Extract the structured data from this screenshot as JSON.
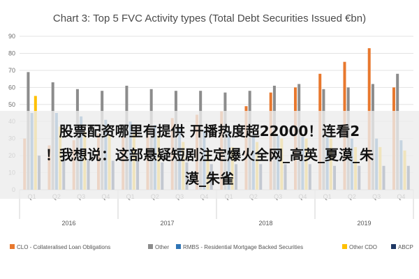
{
  "chart_data": {
    "type": "bar",
    "title": "Chart 3: Top 5 FVC Activity types (Total Debt Securities Issued €bn)",
    "xlabel": "",
    "ylabel": "",
    "ylim": [
      0,
      90
    ],
    "yticks": [
      "0",
      "10",
      "20",
      "30",
      "40",
      "50",
      "60",
      "70",
      "80",
      "90"
    ],
    "grid": true,
    "legend_position": "bottom",
    "categories": [
      "Q1",
      "Q2",
      "Q3",
      "Q4",
      "Q1",
      "Q2",
      "Q3",
      "Q4",
      "Q1",
      "Q2",
      "Q3",
      "Q4",
      "Q1",
      "Q2",
      "Q3",
      "Q4"
    ],
    "groups": [
      {
        "label": "2016",
        "count": 4
      },
      {
        "label": "2017",
        "count": 4
      },
      {
        "label": "2018",
        "count": 4
      },
      {
        "label": "2019",
        "count": 4
      }
    ],
    "series": [
      {
        "name": "CLO - Collateralised Loan Obligations",
        "color": "#e8782e",
        "values": [
          30,
          26,
          29,
          33,
          31,
          36,
          42,
          44,
          46,
          49,
          57,
          60,
          68,
          75,
          83,
          60
        ]
      },
      {
        "name": "Other",
        "color": "#8c8c8c",
        "values": [
          69,
          63,
          59,
          58,
          61,
          59,
          58,
          58,
          57,
          58,
          61,
          62,
          59,
          60,
          62,
          68
        ]
      },
      {
        "name": "RMBS - Residential Mortgage Backed Securities",
        "color": "#2f75b5",
        "values": [
          45,
          45,
          43,
          41,
          40,
          38,
          36,
          35,
          34,
          32,
          32,
          31,
          31,
          30,
          30,
          29
        ]
      },
      {
        "name": "Other CDO",
        "color": "#ffc000",
        "values": [
          55,
          37,
          34,
          32,
          33,
          32,
          28,
          23,
          25,
          28,
          30,
          30,
          30,
          25,
          25,
          23
        ]
      },
      {
        "name": "ABCP",
        "color": "#1f3864",
        "values": [
          20,
          19,
          18,
          17,
          17,
          16,
          16,
          15,
          15,
          15,
          15,
          15,
          14,
          14,
          14,
          14
        ]
      }
    ]
  },
  "overlay": {
    "line1": "股票配资哪里有提供 开播热度超22000！连看2",
    "line2": "！我想说：这部悬疑短剧注定爆火全网_高英_夏漠_朱",
    "line3": "漠_朱雀"
  }
}
